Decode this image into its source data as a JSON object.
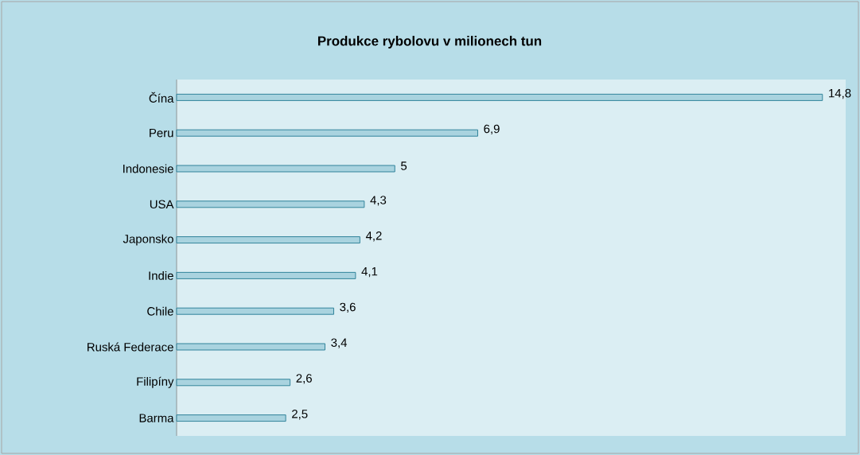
{
  "chart_data": {
    "type": "bar",
    "orientation": "horizontal",
    "title": "Produkce rybolovu v milionech tun",
    "categories": [
      "Čína",
      "Peru",
      "Indonesie",
      "USA",
      "Japonsko",
      "Indie",
      "Chile",
      "Ruská Federace",
      "Filipíny",
      "Barma"
    ],
    "values": [
      14.8,
      6.9,
      5,
      4.3,
      4.2,
      4.1,
      3.6,
      3.4,
      2.6,
      2.5
    ],
    "value_labels": [
      "14,8",
      "6,9",
      "5",
      "4,3",
      "4,2",
      "4,1",
      "3,6",
      "3,4",
      "2,6",
      "2,5"
    ],
    "color": "#a9d3df"
  }
}
